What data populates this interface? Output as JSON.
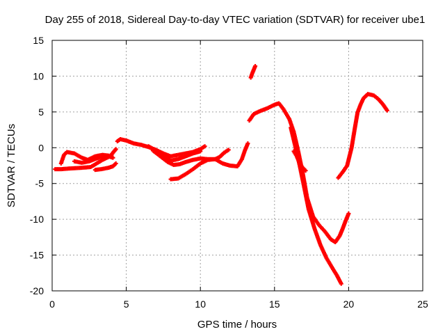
{
  "chart_data": {
    "type": "scatter",
    "title": "Day 255 of 2018, Sidereal Day-to-day VTEC variation (SDTVAR) for receiver ube1",
    "xlabel": "GPS time / hours",
    "ylabel": "SDTVAR / TECUs",
    "xlim": [
      0,
      25
    ],
    "ylim": [
      -20,
      15
    ],
    "xticks": [
      "0",
      "5",
      "10",
      "15",
      "20",
      "25"
    ],
    "yticks": [
      "-20",
      "-15",
      "-10",
      "-5",
      "0",
      "5",
      "10",
      "15"
    ],
    "grid": true,
    "marker": "plus",
    "color": "#ff0000",
    "series": [
      {
        "x": [
          0.2,
          0.6,
          1.2,
          2.0,
          2.6,
          3.0,
          3.4,
          3.8,
          4.0,
          4.1,
          4.3
        ],
        "y": [
          -3.0,
          -3.0,
          -2.9,
          -2.8,
          -2.7,
          -2.2,
          -1.7,
          -1.3,
          -1.0,
          -0.7,
          -0.2
        ]
      },
      {
        "x": [
          0.6,
          0.8,
          1.0,
          1.5,
          2.0,
          2.4,
          2.9,
          3.4,
          3.8,
          4.1
        ],
        "y": [
          -2.2,
          -1.0,
          -0.6,
          -0.8,
          -1.4,
          -1.7,
          -1.2,
          -1.0,
          -1.1,
          -1.4
        ]
      },
      {
        "x": [
          1.5,
          2.0,
          2.5,
          3.0,
          3.4,
          3.8,
          4.1
        ],
        "y": [
          -1.9,
          -2.1,
          -1.9,
          -1.5,
          -1.3,
          -1.2,
          -1.4
        ]
      },
      {
        "x": [
          2.9,
          3.3,
          3.8,
          4.1,
          4.3
        ],
        "y": [
          -3.1,
          -3.0,
          -2.8,
          -2.6,
          -2.2
        ]
      },
      {
        "x": [
          4.4,
          4.6,
          5.0,
          5.5,
          6.0,
          6.5,
          7.0,
          7.5,
          8.0,
          8.5,
          9.0,
          9.5,
          10.0,
          10.3
        ],
        "y": [
          0.9,
          1.2,
          1.0,
          0.6,
          0.4,
          0.1,
          -0.3,
          -0.8,
          -1.2,
          -1.0,
          -0.8,
          -0.6,
          -0.2,
          0.2
        ]
      },
      {
        "x": [
          6.5,
          7.0,
          7.5,
          8.0,
          8.5,
          9.0,
          9.5,
          10.0
        ],
        "y": [
          0.2,
          -0.4,
          -1.1,
          -1.8,
          -1.6,
          -1.2,
          -0.8,
          -0.5
        ]
      },
      {
        "x": [
          6.8,
          7.3,
          7.8,
          8.2,
          8.6,
          9.0,
          9.5,
          10.0,
          10.5,
          11.0,
          11.3,
          11.6,
          11.9
        ],
        "y": [
          -0.4,
          -1.2,
          -2.0,
          -2.4,
          -2.3,
          -2.0,
          -1.7,
          -1.5,
          -1.6,
          -1.6,
          -1.3,
          -0.7,
          -0.3
        ]
      },
      {
        "x": [
          8.0,
          8.5,
          9.0,
          9.5,
          10.0,
          10.5,
          11.0,
          11.5,
          12.0,
          12.5,
          12.8,
          13.0,
          13.2
        ],
        "y": [
          -4.4,
          -4.3,
          -3.7,
          -3.0,
          -2.2,
          -1.7,
          -1.6,
          -2.2,
          -2.5,
          -2.6,
          -1.6,
          -0.4,
          0.6
        ]
      },
      {
        "x": [
          13.4,
          13.5,
          13.6,
          13.7
        ],
        "y": [
          9.8,
          10.4,
          10.9,
          11.4
        ]
      },
      {
        "x": [
          13.3,
          13.6,
          14.0,
          14.5,
          15.0,
          15.3,
          15.6,
          16.0,
          16.3,
          16.6,
          16.9,
          17.2,
          17.6,
          18.0,
          18.4,
          18.8,
          19.1,
          19.4,
          19.6,
          19.8,
          20.0
        ],
        "y": [
          3.8,
          4.7,
          5.1,
          5.5,
          6.0,
          6.2,
          5.4,
          4.0,
          2.2,
          -0.5,
          -3.5,
          -7.0,
          -9.6,
          -10.8,
          -11.7,
          -12.8,
          -13.2,
          -12.3,
          -11.3,
          -10.2,
          -9.2
        ]
      },
      {
        "x": [
          16.1,
          16.4,
          16.7,
          17.0,
          17.3,
          17.7,
          18.1,
          18.5,
          18.9,
          19.2,
          19.5
        ],
        "y": [
          2.8,
          0.2,
          -2.5,
          -5.5,
          -8.6,
          -11.3,
          -13.6,
          -15.4,
          -16.8,
          -17.8,
          -19.0
        ]
      },
      {
        "x": [
          16.3,
          16.5,
          16.7,
          16.9,
          17.1
        ],
        "y": [
          -0.5,
          -1.2,
          -2.2,
          -2.8,
          -3.2
        ]
      },
      {
        "x": [
          19.3,
          19.6,
          19.9,
          20.2,
          20.4,
          20.6,
          20.8,
          21.0,
          21.3,
          21.7,
          22.0,
          22.3,
          22.6
        ],
        "y": [
          -4.2,
          -3.4,
          -2.5,
          0.0,
          2.5,
          4.9,
          6.0,
          6.9,
          7.5,
          7.3,
          6.8,
          6.1,
          5.2
        ]
      }
    ]
  }
}
